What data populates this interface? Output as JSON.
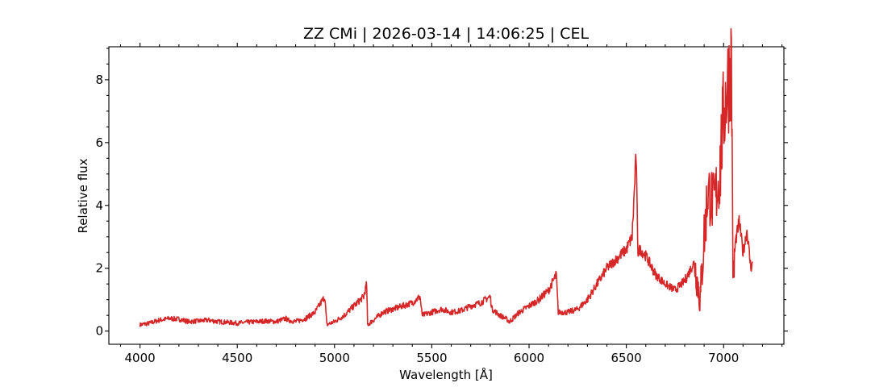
{
  "chart_data": {
    "type": "line",
    "title": "ZZ CMi | 2026-03-14 | 14:06:25 | CEL",
    "xlabel": "Wavelength [Å]",
    "ylabel": "Relative flux",
    "xlim": [
      3840,
      7310
    ],
    "ylim": [
      -0.42,
      9.05
    ],
    "xticks": [
      4000,
      4500,
      5000,
      5500,
      6000,
      6500,
      7000
    ],
    "yticks": [
      0,
      2,
      4,
      6,
      8
    ],
    "grid": false,
    "legend": "none",
    "series": [
      {
        "color": "#d62728",
        "x": [
          4000,
          4050,
          4100,
          4150,
          4200,
          4250,
          4300,
          4350,
          4400,
          4450,
          4500,
          4550,
          4600,
          4650,
          4700,
          4750,
          4760,
          4800,
          4850,
          4900,
          4930,
          4950,
          4960,
          5000,
          5050,
          5100,
          5150,
          5165,
          5170,
          5200,
          5250,
          5300,
          5350,
          5400,
          5440,
          5450,
          5500,
          5550,
          5600,
          5650,
          5700,
          5750,
          5800,
          5810,
          5850,
          5880,
          5900,
          5950,
          6000,
          6050,
          6100,
          6140,
          6150,
          6200,
          6250,
          6300,
          6350,
          6400,
          6450,
          6500,
          6530,
          6550,
          6560,
          6570,
          6600,
          6650,
          6700,
          6750,
          6800,
          6850,
          6880,
          6900,
          6920,
          6950,
          6980,
          7000,
          7020,
          7040,
          7050,
          7060,
          7080,
          7100,
          7120,
          7140,
          7150
        ],
        "y": [
          0.2,
          0.25,
          0.35,
          0.4,
          0.38,
          0.3,
          0.32,
          0.35,
          0.3,
          0.28,
          0.25,
          0.28,
          0.3,
          0.32,
          0.3,
          0.4,
          0.35,
          0.3,
          0.4,
          0.6,
          0.9,
          1.1,
          0.2,
          0.3,
          0.5,
          0.8,
          1.1,
          1.5,
          0.2,
          0.35,
          0.6,
          0.7,
          0.8,
          0.9,
          1.1,
          0.5,
          0.6,
          0.7,
          0.6,
          0.65,
          0.8,
          0.9,
          1.1,
          0.7,
          0.5,
          0.4,
          0.3,
          0.6,
          0.8,
          1.0,
          1.3,
          1.8,
          0.6,
          0.6,
          0.7,
          1.0,
          1.5,
          2.0,
          2.3,
          2.6,
          3.0,
          5.6,
          2.5,
          2.6,
          2.4,
          1.8,
          1.5,
          1.3,
          1.6,
          2.2,
          1.0,
          3.0,
          4.5,
          4.0,
          5.0,
          7.0,
          7.8,
          8.6,
          1.5,
          2.8,
          3.5,
          2.5,
          3.2,
          2.0,
          2.2
        ]
      }
    ]
  }
}
